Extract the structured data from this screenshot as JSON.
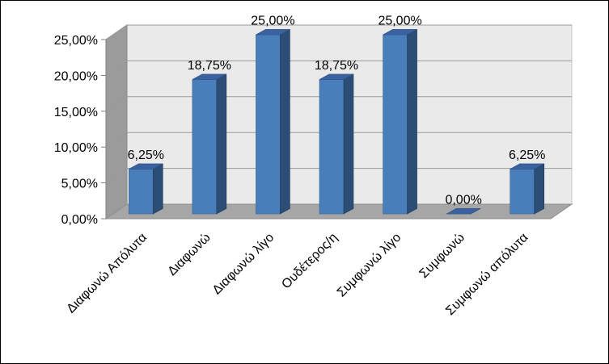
{
  "chart_data": {
    "type": "bar",
    "style": "3d-column",
    "categories": [
      "Διαφωνώ Απόλυτα",
      "Διαφωνώ",
      "Διαφωνώ λίγο",
      "Ουδέτερος/η",
      "Συμφωνώ λίγο",
      "Συμφωνώ",
      "Συμφωνώ απόλυτα"
    ],
    "values": [
      6.25,
      18.75,
      25.0,
      18.75,
      25.0,
      0.0,
      6.25
    ],
    "data_labels": [
      "6,25%",
      "18,75%",
      "25,00%",
      "18,75%",
      "25,00%",
      "0,00%",
      "6,25%"
    ],
    "y_ticks": [
      "0,00%",
      "5,00%",
      "10,00%",
      "15,00%",
      "20,00%",
      "25,00%"
    ],
    "ylim": [
      0,
      25
    ],
    "title": "",
    "xlabel": "",
    "ylabel": "",
    "grid": true,
    "legend": "none",
    "colors": {
      "bar_front": "#4a7ebb",
      "bar_side": "#2c4d75",
      "bar_top": "#3a62a0",
      "wall": "#eaeaea",
      "side_wall": "#9b9b9b",
      "floor": "#a6a6a6",
      "gridline": "#9a9a9a"
    }
  }
}
